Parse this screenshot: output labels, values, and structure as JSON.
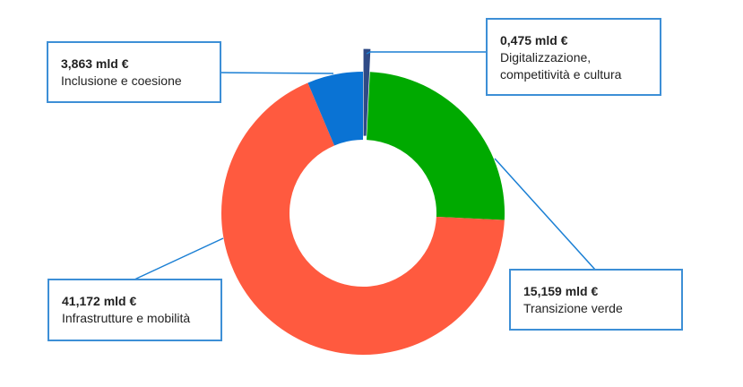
{
  "chart_data": {
    "type": "pie",
    "variant": "donut",
    "title": "",
    "unit": "mld €",
    "slices": [
      {
        "label": "Digitalizzazione, competitività e cultura",
        "value": 0.475,
        "display": "0,475 mld €",
        "color": "#2f4a86"
      },
      {
        "label": "Transizione verde",
        "value": 15.159,
        "display": "15,159 mld €",
        "color": "#00aa00"
      },
      {
        "label": "Infrastrutture e mobilità",
        "value": 41.172,
        "display": "41,172 mld €",
        "color": "#ff5a3f"
      },
      {
        "label": "Inclusione e coesione",
        "value": 3.863,
        "display": "3,863 mld €",
        "color": "#0a73d4"
      }
    ],
    "legend": "callout boxes with leader lines",
    "leader_line_color": "#1a7fd4"
  },
  "labels": {
    "digital": {
      "value": "0,475 mld €",
      "name_line1": "Digitalizzazione,",
      "name_line2": "competitività e cultura"
    },
    "inclusion": {
      "value": "3,863 mld €",
      "name": "Inclusione e coesione"
    },
    "infrastructure": {
      "value": "41,172 mld €",
      "name": "Infrastrutture e mobilità"
    },
    "green": {
      "value": "15,159 mld €",
      "name": "Transizione verde"
    }
  }
}
